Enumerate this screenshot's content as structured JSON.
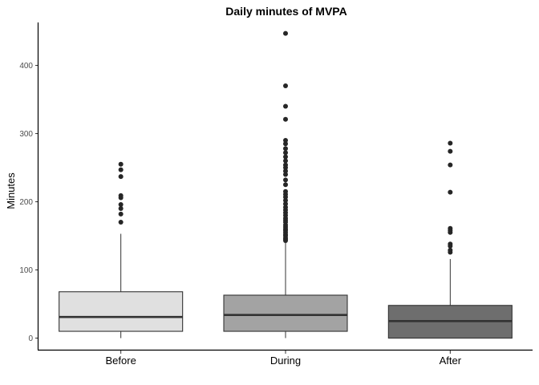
{
  "chart_data": {
    "type": "boxplot",
    "title": "Daily minutes of MVPA",
    "xlabel": "",
    "ylabel": "Minutes",
    "ylim": [
      -17,
      463
    ],
    "yticks": [
      0,
      100,
      200,
      300,
      400
    ],
    "ytick_labels": [
      "0",
      "100",
      "200",
      "300",
      "400"
    ],
    "grid": false,
    "legend": "none",
    "categories": [
      "Before",
      "During",
      "After"
    ],
    "boxes": [
      {
        "category": "Before",
        "fill": "#e0e0e0",
        "whisker_low": 0,
        "q1": 10,
        "median": 31,
        "q3": 68,
        "whisker_high": 153,
        "outliers": [
          170,
          182,
          190,
          196,
          206,
          209,
          237,
          247,
          255
        ]
      },
      {
        "category": "During",
        "fill": "#a3a3a3",
        "whisker_low": 0,
        "q1": 10,
        "median": 34,
        "q3": 63,
        "whisker_high": 140,
        "outliers": [
          143,
          145,
          147,
          150,
          152,
          155,
          158,
          160,
          163,
          166,
          170,
          173,
          176,
          180,
          184,
          188,
          192,
          197,
          202,
          207,
          211,
          215,
          225,
          232,
          240,
          245,
          250,
          254,
          260,
          266,
          272,
          278,
          285,
          290,
          321,
          340,
          370,
          447
        ]
      },
      {
        "category": "After",
        "fill": "#6e6e6e",
        "whisker_low": 0,
        "q1": 0,
        "median": 25,
        "q3": 48,
        "whisker_high": 116,
        "outliers": [
          126,
          129,
          135,
          138,
          155,
          158,
          161,
          214,
          254,
          274,
          286
        ]
      }
    ]
  }
}
